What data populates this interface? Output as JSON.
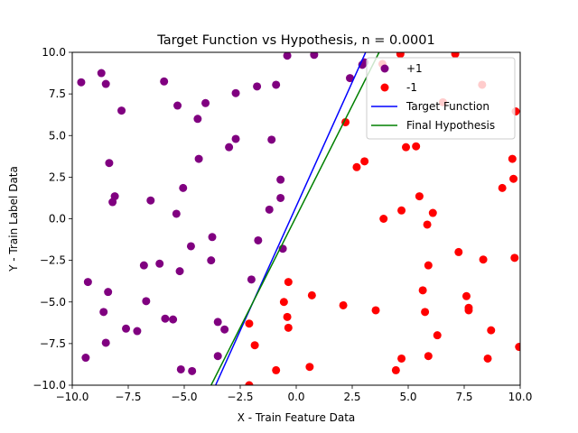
{
  "chart_data": {
    "type": "scatter",
    "title": "Target Function vs Hypothesis, n = 0.0001",
    "xlabel": "X - Train Feature Data",
    "ylabel": "Y - Train Label Data",
    "xlim": [
      -10,
      10
    ],
    "ylim": [
      -10,
      10
    ],
    "xticks": [
      "−10.0",
      "−7.5",
      "−5.0",
      "−2.5",
      "0.0",
      "2.5",
      "5.0",
      "7.5",
      "10.0"
    ],
    "xtick_values": [
      -10,
      -7.5,
      -5,
      -2.5,
      0,
      2.5,
      5,
      7.5,
      10
    ],
    "yticks": [
      "−10.0",
      "−7.5",
      "−5.0",
      "−2.5",
      "0.0",
      "2.5",
      "5.0",
      "7.5",
      "10.0"
    ],
    "ytick_values": [
      -10,
      -7.5,
      -5,
      -2.5,
      0,
      2.5,
      5,
      7.5,
      10
    ],
    "grid": false,
    "legend_position": "top-right",
    "series": [
      {
        "name": "+1",
        "kind": "points",
        "color": "#800080",
        "points": [
          [
            -9.6,
            8.2
          ],
          [
            -8.7,
            8.75
          ],
          [
            -8.5,
            8.1
          ],
          [
            -7.8,
            6.5
          ],
          [
            -8.35,
            3.35
          ],
          [
            -8.1,
            1.35
          ],
          [
            -8.2,
            1.0
          ],
          [
            -9.3,
            -3.8
          ],
          [
            -8.4,
            -4.4
          ],
          [
            -8.6,
            -5.6
          ],
          [
            -8.5,
            -7.45
          ],
          [
            -9.4,
            -8.35
          ],
          [
            -7.6,
            -6.6
          ],
          [
            -7.1,
            -6.75
          ],
          [
            -6.7,
            -4.95
          ],
          [
            -6.8,
            -2.8
          ],
          [
            -6.5,
            1.1
          ],
          [
            -6.1,
            -2.7
          ],
          [
            -5.9,
            8.25
          ],
          [
            -5.85,
            -6.0
          ],
          [
            -5.5,
            -6.05
          ],
          [
            -5.2,
            -3.15
          ],
          [
            -5.35,
            0.3
          ],
          [
            -5.05,
            1.85
          ],
          [
            -5.3,
            6.8
          ],
          [
            -4.7,
            -1.65
          ],
          [
            -5.15,
            -9.05
          ],
          [
            -4.65,
            -9.15
          ],
          [
            -4.35,
            3.6
          ],
          [
            -4.4,
            6.0
          ],
          [
            -4.05,
            6.95
          ],
          [
            -3.75,
            -1.1
          ],
          [
            -3.8,
            -2.5
          ],
          [
            -3.5,
            -6.2
          ],
          [
            -3.5,
            -8.25
          ],
          [
            -3.2,
            -6.65
          ],
          [
            -3.0,
            4.3
          ],
          [
            -2.7,
            4.8
          ],
          [
            -2.7,
            7.55
          ],
          [
            -2.0,
            -3.65
          ],
          [
            -1.7,
            -1.3
          ],
          [
            -1.75,
            7.95
          ],
          [
            -1.2,
            0.55
          ],
          [
            -1.1,
            4.75
          ],
          [
            -0.9,
            8.05
          ],
          [
            -0.7,
            2.35
          ],
          [
            -0.7,
            1.25
          ],
          [
            -0.6,
            -1.8
          ],
          [
            -0.4,
            9.8
          ],
          [
            0.8,
            9.85
          ],
          [
            2.4,
            8.45
          ],
          [
            2.95,
            9.25
          ],
          [
            3.05,
            9.4
          ]
        ]
      },
      {
        "name": "-1",
        "kind": "points",
        "color": "#ff0000",
        "points": [
          [
            -2.1,
            -6.3
          ],
          [
            -2.1,
            -10.0
          ],
          [
            -1.85,
            -7.6
          ],
          [
            -0.9,
            -9.1
          ],
          [
            -0.55,
            -5.0
          ],
          [
            -0.4,
            -5.9
          ],
          [
            -0.35,
            -6.55
          ],
          [
            -0.35,
            -3.8
          ],
          [
            0.6,
            -8.9
          ],
          [
            0.7,
            -4.6
          ],
          [
            2.1,
            -5.2
          ],
          [
            2.2,
            5.8
          ],
          [
            2.7,
            3.1
          ],
          [
            3.05,
            3.45
          ],
          [
            3.55,
            -5.5
          ],
          [
            3.85,
            9.3
          ],
          [
            3.9,
            0.0
          ],
          [
            4.45,
            -9.1
          ],
          [
            4.65,
            9.9
          ],
          [
            4.7,
            -8.4
          ],
          [
            4.7,
            0.5
          ],
          [
            4.9,
            4.3
          ],
          [
            5.35,
            4.35
          ],
          [
            5.5,
            1.35
          ],
          [
            5.65,
            -4.3
          ],
          [
            5.75,
            -5.6
          ],
          [
            5.85,
            -0.35
          ],
          [
            5.9,
            -2.8
          ],
          [
            5.9,
            -8.25
          ],
          [
            6.1,
            0.35
          ],
          [
            6.3,
            -7.0
          ],
          [
            6.55,
            7.0
          ],
          [
            7.1,
            9.9
          ],
          [
            7.25,
            -2.0
          ],
          [
            7.6,
            -4.65
          ],
          [
            7.7,
            -5.35
          ],
          [
            7.7,
            -5.5
          ],
          [
            8.3,
            8.05
          ],
          [
            8.35,
            -2.45
          ],
          [
            8.55,
            -8.4
          ],
          [
            8.7,
            -6.7
          ],
          [
            9.2,
            1.85
          ],
          [
            9.65,
            3.6
          ],
          [
            9.7,
            2.4
          ],
          [
            9.75,
            -2.35
          ],
          [
            9.8,
            6.45
          ],
          [
            9.95,
            -7.7
          ]
        ]
      },
      {
        "name": "Target Function",
        "kind": "line",
        "color": "#0000ff",
        "points": [
          [
            -3.6,
            -10.0
          ],
          [
            3.1,
            10.0
          ]
        ]
      },
      {
        "name": "Final Hypothesis",
        "kind": "line",
        "color": "#008000",
        "points": [
          [
            -3.8,
            -10.0
          ],
          [
            3.7,
            10.0
          ]
        ]
      }
    ]
  }
}
